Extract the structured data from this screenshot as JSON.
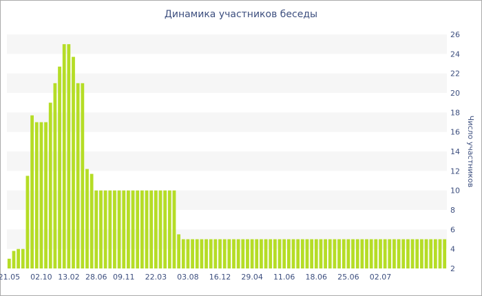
{
  "chart_data": {
    "type": "bar",
    "title": "Динамика участников беседы",
    "xlabel": "",
    "ylabel": "Число участников",
    "ylim": [
      2,
      26
    ],
    "yticks": [
      2,
      4,
      6,
      8,
      10,
      12,
      14,
      16,
      18,
      20,
      22,
      24,
      26
    ],
    "xtick_labels": [
      "21.05",
      "02.10",
      "13.02",
      "28.06",
      "09.11",
      "22.03",
      "03.08",
      "16.12",
      "29.04",
      "11.06",
      "18.06",
      "25.06",
      "02.07"
    ],
    "xtick_indices": [
      0,
      7,
      13,
      19,
      25,
      32,
      39,
      46,
      53,
      60,
      67,
      74,
      81
    ],
    "values": [
      3,
      3.8,
      4,
      4,
      11.5,
      17.7,
      17,
      17,
      17,
      19,
      21,
      22.7,
      25,
      25,
      23.7,
      21,
      21,
      12.2,
      11.7,
      10,
      10,
      10,
      10,
      10,
      10,
      10,
      10,
      10,
      10,
      10,
      10,
      10,
      10,
      10,
      10,
      10,
      10,
      5.5,
      5,
      5,
      5,
      5,
      5,
      5,
      5,
      5,
      5,
      5,
      5,
      5,
      5,
      5,
      5,
      5,
      5,
      5,
      5,
      5,
      5,
      5,
      5,
      5,
      5,
      5,
      5,
      5,
      5,
      5,
      5,
      5,
      5,
      5,
      5,
      5,
      5,
      5,
      5,
      5,
      5,
      5,
      5,
      5,
      5,
      5,
      5,
      5,
      5,
      5,
      5,
      5,
      5,
      5,
      5,
      5,
      5,
      5
    ],
    "grid": "horizontal bands",
    "legend": "none",
    "colors": {
      "bar": "#b5dd26",
      "band": "#f6f6f6",
      "text": "#3c4e7e",
      "border": "#a9a9a9"
    }
  }
}
